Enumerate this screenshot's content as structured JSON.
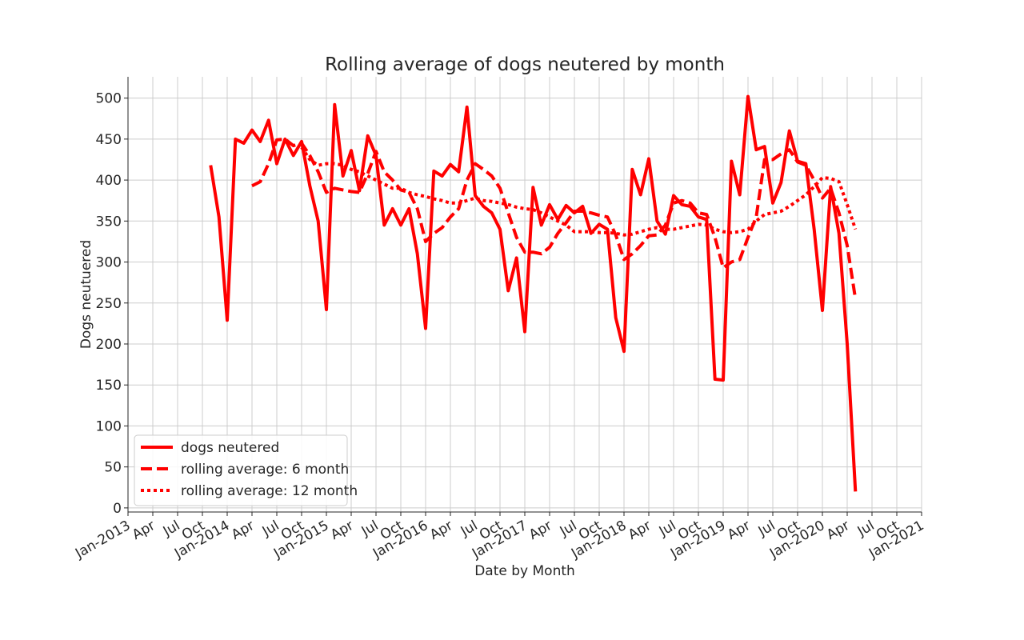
{
  "chart_data": {
    "type": "line",
    "title": "Rolling average of dogs neutered by month",
    "xlabel": "Date by Month",
    "ylabel": "Dogs neutuered",
    "x": [
      "2013-11",
      "2013-12",
      "2014-01",
      "2014-02",
      "2014-03",
      "2014-04",
      "2014-05",
      "2014-06",
      "2014-07",
      "2014-08",
      "2014-09",
      "2014-10",
      "2014-11",
      "2014-12",
      "2015-01",
      "2015-02",
      "2015-03",
      "2015-04",
      "2015-05",
      "2015-06",
      "2015-07",
      "2015-08",
      "2015-09",
      "2015-10",
      "2015-11",
      "2015-12",
      "2016-01",
      "2016-02",
      "2016-03",
      "2016-04",
      "2016-05",
      "2016-06",
      "2016-07",
      "2016-08",
      "2016-09",
      "2016-10",
      "2016-11",
      "2016-12",
      "2017-01",
      "2017-02",
      "2017-03",
      "2017-04",
      "2017-05",
      "2017-06",
      "2017-07",
      "2017-08",
      "2017-09",
      "2017-10",
      "2017-11",
      "2017-12",
      "2018-01",
      "2018-02",
      "2018-03",
      "2018-04",
      "2018-05",
      "2018-06",
      "2018-07",
      "2018-08",
      "2018-09",
      "2018-10",
      "2018-11",
      "2018-12",
      "2019-01",
      "2019-02",
      "2019-03",
      "2019-04",
      "2019-05",
      "2019-06",
      "2019-07",
      "2019-08",
      "2019-09",
      "2019-10",
      "2019-11",
      "2019-12",
      "2020-01",
      "2020-02",
      "2020-03",
      "2020-04",
      "2020-05"
    ],
    "series": [
      {
        "name": "dogs neutered",
        "color": "#ff0000",
        "dash": "solid",
        "values": [
          418,
          355,
          229,
          450,
          445,
          461,
          447,
          473,
          420,
          450,
          430,
          447,
          393,
          350,
          242,
          492,
          405,
          436,
          387,
          454,
          430,
          345,
          365,
          345,
          365,
          310,
          219,
          411,
          405,
          419,
          410,
          489,
          381,
          368,
          360,
          340,
          265,
          305,
          215,
          391,
          345,
          370,
          352,
          369,
          360,
          368,
          335,
          346,
          340,
          232,
          191,
          413,
          382,
          426,
          350,
          334,
          381,
          370,
          368,
          355,
          352,
          157,
          156,
          423,
          382,
          502,
          437,
          441,
          372,
          397,
          460,
          423,
          420,
          340,
          241,
          392,
          335,
          200,
          20
        ]
      },
      {
        "name": "rolling average: 6 month",
        "color": "#ff0000",
        "dash": "dashed",
        "values": [
          null,
          null,
          null,
          null,
          null,
          393,
          398,
          420,
          449,
          450,
          442,
          445,
          430,
          410,
          385,
          390,
          388,
          386,
          385,
          408,
          435,
          410,
          400,
          388,
          385,
          365,
          325,
          335,
          342,
          355,
          365,
          400,
          420,
          413,
          405,
          390,
          360,
          330,
          312,
          312,
          310,
          318,
          335,
          348,
          362,
          362,
          360,
          357,
          355,
          333,
          303,
          310,
          320,
          332,
          333,
          345,
          372,
          375,
          372,
          360,
          358,
          330,
          293,
          300,
          303,
          330,
          355,
          425,
          425,
          432,
          437,
          422,
          418,
          400,
          378,
          390,
          360,
          320,
          255
        ]
      },
      {
        "name": "rolling average: 12 month",
        "color": "#ff0000",
        "dash": "dotted",
        "values": [
          null,
          null,
          null,
          null,
          null,
          null,
          null,
          null,
          null,
          null,
          null,
          440,
          425,
          418,
          420,
          420,
          418,
          413,
          410,
          405,
          400,
          395,
          390,
          390,
          385,
          382,
          380,
          377,
          375,
          372,
          372,
          375,
          378,
          375,
          374,
          372,
          370,
          367,
          365,
          364,
          360,
          355,
          350,
          345,
          337,
          337,
          337,
          336,
          336,
          335,
          333,
          334,
          337,
          340,
          342,
          340,
          340,
          342,
          344,
          346,
          345,
          340,
          337,
          336,
          337,
          340,
          350,
          358,
          360,
          362,
          368,
          375,
          382,
          392,
          403,
          402,
          398,
          370,
          340
        ]
      }
    ],
    "xlim": [
      "2013-01",
      "2021-01"
    ],
    "xticks": [
      {
        "value": "2013-01",
        "label": "Jan-2013"
      },
      {
        "value": "2013-04",
        "label": "Apr"
      },
      {
        "value": "2013-07",
        "label": "Jul"
      },
      {
        "value": "2013-10",
        "label": "Oct"
      },
      {
        "value": "2014-01",
        "label": "Jan-2014"
      },
      {
        "value": "2014-04",
        "label": "Apr"
      },
      {
        "value": "2014-07",
        "label": "Jul"
      },
      {
        "value": "2014-10",
        "label": "Oct"
      },
      {
        "value": "2015-01",
        "label": "Jan-2015"
      },
      {
        "value": "2015-04",
        "label": "Apr"
      },
      {
        "value": "2015-07",
        "label": "Jul"
      },
      {
        "value": "2015-10",
        "label": "Oct"
      },
      {
        "value": "2016-01",
        "label": "Jan-2016"
      },
      {
        "value": "2016-04",
        "label": "Apr"
      },
      {
        "value": "2016-07",
        "label": "Jul"
      },
      {
        "value": "2016-10",
        "label": "Oct"
      },
      {
        "value": "2017-01",
        "label": "Jan-2017"
      },
      {
        "value": "2017-04",
        "label": "Apr"
      },
      {
        "value": "2017-07",
        "label": "Jul"
      },
      {
        "value": "2017-10",
        "label": "Oct"
      },
      {
        "value": "2018-01",
        "label": "Jan-2018"
      },
      {
        "value": "2018-04",
        "label": "Apr"
      },
      {
        "value": "2018-07",
        "label": "Jul"
      },
      {
        "value": "2018-10",
        "label": "Oct"
      },
      {
        "value": "2019-01",
        "label": "Jan-2019"
      },
      {
        "value": "2019-04",
        "label": "Apr"
      },
      {
        "value": "2019-07",
        "label": "Jul"
      },
      {
        "value": "2019-10",
        "label": "Oct"
      },
      {
        "value": "2020-01",
        "label": "Jan-2020"
      },
      {
        "value": "2020-04",
        "label": "Apr"
      },
      {
        "value": "2020-07",
        "label": "Jul"
      },
      {
        "value": "2020-10",
        "label": "Oct"
      },
      {
        "value": "2021-01",
        "label": "Jan-2021"
      }
    ],
    "ylim": [
      -5,
      526
    ],
    "yticks": [
      0,
      50,
      100,
      150,
      200,
      250,
      300,
      350,
      400,
      450,
      500
    ],
    "grid": true,
    "legend": "lower left"
  }
}
